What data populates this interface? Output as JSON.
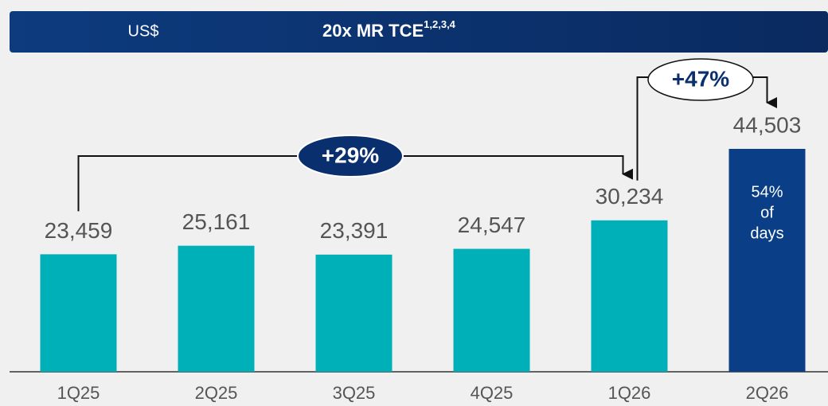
{
  "chart_data": {
    "type": "bar",
    "unit_label": "US$",
    "title": "20x MR TCE",
    "title_superscript": "1,2,3,4",
    "categories": [
      "1Q25",
      "2Q25",
      "3Q25",
      "4Q25",
      "1Q26",
      "2Q26"
    ],
    "values": [
      23459,
      25161,
      23391,
      24547,
      30234,
      44503
    ],
    "value_labels": [
      "23,459",
      "25,161",
      "23,391",
      "24,547",
      "30,234",
      "44,503"
    ],
    "colors": [
      "#00b0b9",
      "#00b0b9",
      "#00b0b9",
      "#00b0b9",
      "#00b0b9",
      "#0a3f88"
    ],
    "bar_note": [
      "54%",
      "of",
      "days"
    ],
    "annotations": [
      "+29%",
      "+47%"
    ]
  }
}
